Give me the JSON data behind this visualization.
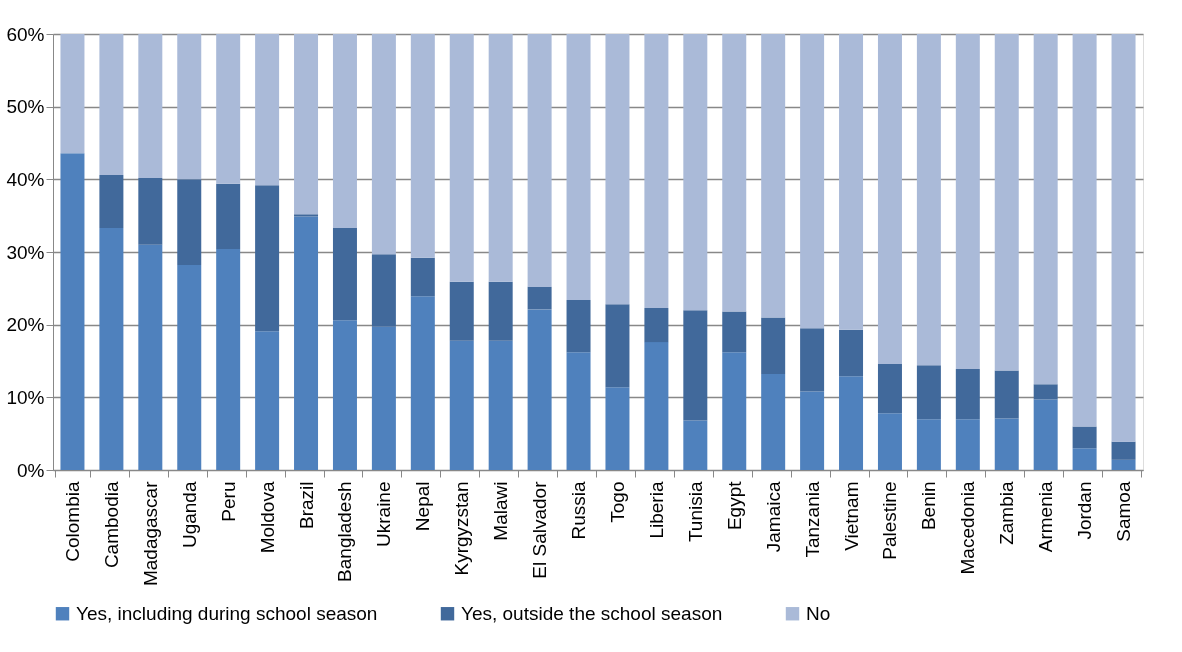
{
  "chart_data": {
    "type": "bar",
    "stacked": true,
    "categories": [
      "Colombia",
      "Cambodia",
      "Madagascar",
      "Uganda",
      "Peru",
      "Moldova",
      "Brazil",
      "Bangladesh",
      "Ukraine",
      "Nepal",
      "Kyrgyzstan",
      "Malawi",
      "El Salvador",
      "Russia",
      "Togo",
      "Liberia",
      "Tunisia",
      "Egypt",
      "Jamaica",
      "Tanzania",
      "Vietnam",
      "Palestine",
      "Benin",
      "Macedonia",
      "Zambia",
      "Armenia",
      "Jordan",
      "Samoa"
    ],
    "series": [
      {
        "name": "Yes, including during school season",
        "color": "#4f81bd",
        "values": [
          43.6,
          33.3,
          31.0,
          28.2,
          30.4,
          19.1,
          34.9,
          20.6,
          19.7,
          23.9,
          17.8,
          17.8,
          22.1,
          16.2,
          11.4,
          17.6,
          6.8,
          16.2,
          13.2,
          10.8,
          12.9,
          7.8,
          7.0,
          7.0,
          7.1,
          9.7,
          3.0,
          1.4
        ]
      },
      {
        "name": "Yes, outside the school season",
        "color": "#41699b",
        "values": [
          0,
          7.3,
          9.2,
          11.8,
          9.0,
          20.1,
          0.3,
          12.7,
          10.0,
          5.3,
          8.1,
          8.1,
          3.1,
          7.2,
          11.4,
          4.7,
          15.2,
          5.6,
          7.8,
          8.7,
          6.4,
          6.8,
          7.4,
          6.9,
          6.6,
          2.1,
          3.0,
          2.5
        ]
      },
      {
        "name": "No",
        "color": "#aabad8",
        "values": [
          16.4,
          19.4,
          19.8,
          20.0,
          20.6,
          20.8,
          24.8,
          26.7,
          30.3,
          30.8,
          34.1,
          34.1,
          34.8,
          36.6,
          37.2,
          37.7,
          38.0,
          38.2,
          39.0,
          40.5,
          40.7,
          45.4,
          45.6,
          46.1,
          46.3,
          48.2,
          54.0,
          56.1
        ]
      }
    ],
    "ylim": [
      0,
      60
    ],
    "yticks": [
      {
        "value": 0,
        "label": "0%"
      },
      {
        "value": 10,
        "label": "10%"
      },
      {
        "value": 20,
        "label": "20%"
      },
      {
        "value": 30,
        "label": "30%"
      },
      {
        "value": 40,
        "label": "40%"
      },
      {
        "value": 50,
        "label": "50%"
      },
      {
        "value": 60,
        "label": "60%"
      }
    ],
    "grid": "y",
    "legend": "bottom"
  }
}
